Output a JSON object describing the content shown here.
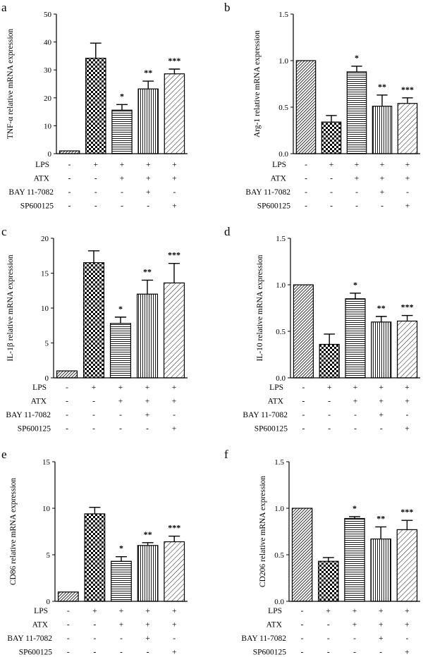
{
  "chart_data": [
    {
      "type": "bar",
      "panel": "a",
      "ylabel": "TNF-α relative mRNA expression",
      "ylim": [
        0,
        50
      ],
      "yticks": [
        0,
        10,
        20,
        30,
        40,
        50
      ],
      "values": [
        1.0,
        34.2,
        15.6,
        23.2,
        28.6
      ],
      "errors": [
        0.0,
        5.4,
        2.0,
        2.8,
        1.7
      ],
      "stars": [
        "",
        "",
        "*",
        "**",
        "***"
      ]
    },
    {
      "type": "bar",
      "panel": "b",
      "ylabel": "Arg-1 relative mRNA expression",
      "ylim": [
        0,
        1.5
      ],
      "yticks": [
        "0.0",
        "0.5",
        "1.0",
        "1.5"
      ],
      "values": [
        1.0,
        0.34,
        0.88,
        0.51,
        0.54
      ],
      "errors": [
        0.0,
        0.07,
        0.06,
        0.12,
        0.06
      ],
      "stars": [
        "",
        "",
        "*",
        "**",
        "***"
      ]
    },
    {
      "type": "bar",
      "panel": "c",
      "ylabel": "IL-1β relative mRNA expression",
      "ylim": [
        0,
        20
      ],
      "yticks": [
        0,
        5,
        10,
        15,
        20
      ],
      "values": [
        1.0,
        16.5,
        7.8,
        12.0,
        13.6
      ],
      "errors": [
        0.0,
        1.7,
        0.9,
        2.0,
        2.8
      ],
      "stars": [
        "",
        "",
        "*",
        "**",
        "***"
      ]
    },
    {
      "type": "bar",
      "panel": "d",
      "ylabel": "IL-10 relative mRNA expression",
      "ylim": [
        0,
        1.5
      ],
      "yticks": [
        "0.0",
        "0.5",
        "1.0",
        "1.5"
      ],
      "values": [
        1.0,
        0.36,
        0.85,
        0.6,
        0.61
      ],
      "errors": [
        0.0,
        0.11,
        0.06,
        0.06,
        0.06
      ],
      "stars": [
        "",
        "",
        "*",
        "**",
        "***"
      ]
    },
    {
      "type": "bar",
      "panel": "e",
      "ylabel": "CD86 relative mRNA expression",
      "ylim": [
        0,
        15
      ],
      "yticks": [
        0,
        5,
        10,
        15
      ],
      "values": [
        1.0,
        9.4,
        4.3,
        6.0,
        6.4
      ],
      "errors": [
        0.0,
        0.7,
        0.5,
        0.3,
        0.6
      ],
      "stars": [
        "",
        "",
        "*",
        "**",
        "***"
      ]
    },
    {
      "type": "bar",
      "panel": "f",
      "ylabel": "CD206 relative mRNA expression",
      "ylim": [
        0,
        1.5
      ],
      "yticks": [
        "0.0",
        "0.5",
        "1.0",
        "1.5"
      ],
      "values": [
        1.0,
        0.43,
        0.89,
        0.67,
        0.77
      ],
      "errors": [
        0.0,
        0.04,
        0.02,
        0.13,
        0.1
      ],
      "stars": [
        "",
        "",
        "*",
        "**",
        "***"
      ]
    }
  ],
  "treatments": [
    {
      "label": "LPS",
      "signs": [
        "-",
        "+",
        "+",
        "+",
        "+"
      ]
    },
    {
      "label": "ATX",
      "signs": [
        "-",
        "-",
        "+",
        "+",
        "+"
      ]
    },
    {
      "label": "BAY 11-7082",
      "signs": [
        "-",
        "-",
        "-",
        "+",
        "-"
      ]
    },
    {
      "label": "SP600125",
      "signs": [
        "-",
        "-",
        "-",
        "-",
        "+"
      ]
    }
  ],
  "colors": {
    "ink": "#000000",
    "background": "#ffffff"
  }
}
